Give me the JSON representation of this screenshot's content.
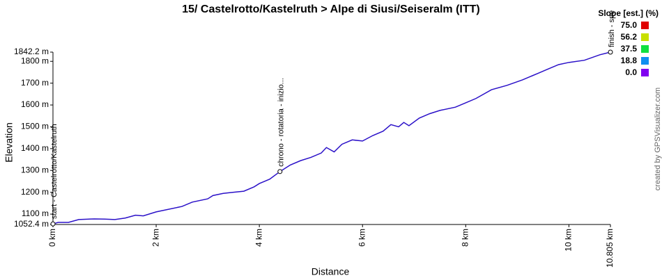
{
  "chart_data": {
    "type": "line",
    "title": "15/ Castelrotto/Kastelruth > Alpe di Siusi/Seiseralm (ITT)",
    "x_label": "Distance",
    "y_label": "Elevation",
    "credit": "created by GPSVisualizer.com",
    "xlim": [
      0,
      10.805
    ],
    "ylim": [
      1052.4,
      1842.2
    ],
    "xticks": [
      {
        "value": 0,
        "label": "0 km"
      },
      {
        "value": 2,
        "label": "2 km"
      },
      {
        "value": 4,
        "label": "4 km"
      },
      {
        "value": 6,
        "label": "6 km"
      },
      {
        "value": 8,
        "label": "8 km"
      },
      {
        "value": 10,
        "label": "10 km"
      },
      {
        "value": 10.805,
        "label": "10.805 km"
      }
    ],
    "yticks": [
      {
        "value": 1052.4,
        "label": "1052.4 m"
      },
      {
        "value": 1100,
        "label": "1100 m"
      },
      {
        "value": 1200,
        "label": "1200 m"
      },
      {
        "value": 1300,
        "label": "1300 m"
      },
      {
        "value": 1400,
        "label": "1400 m"
      },
      {
        "value": 1500,
        "label": "1500 m"
      },
      {
        "value": 1600,
        "label": "1600 m"
      },
      {
        "value": 1700,
        "label": "1700 m"
      },
      {
        "value": 1800,
        "label": "1800 m"
      },
      {
        "value": 1842.2,
        "label": "1842.2 m"
      }
    ],
    "x": [
      0,
      0.1,
      0.3,
      0.5,
      0.8,
      1.0,
      1.2,
      1.4,
      1.6,
      1.75,
      2.0,
      2.5,
      2.7,
      3.0,
      3.1,
      3.3,
      3.5,
      3.7,
      3.9,
      4.0,
      4.2,
      4.4,
      4.6,
      4.8,
      5.0,
      5.2,
      5.3,
      5.45,
      5.6,
      5.8,
      6.0,
      6.2,
      6.4,
      6.55,
      6.7,
      6.8,
      6.9,
      7.1,
      7.3,
      7.5,
      7.8,
      8.0,
      8.2,
      8.5,
      8.8,
      9.1,
      9.4,
      9.6,
      9.8,
      10.0,
      10.3,
      10.6,
      10.805
    ],
    "series": [
      {
        "name": "Elevation",
        "color": "#2a10c8",
        "values": [
          1055,
          1062,
          1062,
          1075,
          1078,
          1077,
          1075,
          1082,
          1095,
          1092,
          1110,
          1135,
          1155,
          1170,
          1185,
          1195,
          1200,
          1205,
          1225,
          1240,
          1260,
          1295,
          1325,
          1345,
          1360,
          1380,
          1405,
          1385,
          1420,
          1440,
          1435,
          1460,
          1480,
          1510,
          1500,
          1520,
          1505,
          1540,
          1560,
          1575,
          1590,
          1610,
          1630,
          1670,
          1690,
          1715,
          1745,
          1765,
          1785,
          1795,
          1805,
          1830,
          1842.2
        ]
      }
    ],
    "waypoints": [
      {
        "label": "start - Castelrotto/Kastelruth",
        "x": 0,
        "elevation": 1055
      },
      {
        "label": "chrono - rotatoria - inizio...",
        "x": 4.4,
        "elevation": 1295
      },
      {
        "label": "finish - spe",
        "x": 10.805,
        "elevation": 1842.2
      }
    ],
    "legend": {
      "title": "Slope [est.] (%)",
      "items": [
        {
          "value": 75.0,
          "label": "75.0",
          "color": "#e00000"
        },
        {
          "value": 56.2,
          "label": "56.2",
          "color": "#c8e000"
        },
        {
          "value": 37.5,
          "label": "37.5",
          "color": "#10e040"
        },
        {
          "value": 18.8,
          "label": "18.8",
          "color": "#1090f0"
        },
        {
          "value": 0.0,
          "label": "0.0",
          "color": "#8000f0"
        }
      ]
    }
  }
}
